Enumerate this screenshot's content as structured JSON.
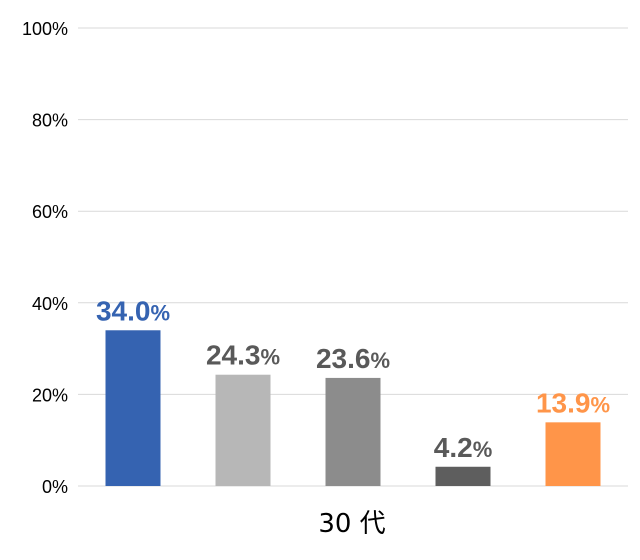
{
  "chart_data": {
    "type": "bar",
    "categories": [
      "30代"
    ],
    "category_label_display": "30 代",
    "ylim": [
      0,
      100
    ],
    "y_ticks": [
      "0%",
      "20%",
      "40%",
      "60%",
      "80%",
      "100%"
    ],
    "y_tick_values": [
      0,
      20,
      40,
      60,
      80,
      100
    ],
    "grid": true,
    "legend": "none",
    "series": [
      {
        "values": [
          34.0
        ],
        "label": "34.0",
        "unit": "%",
        "bar_color": "#3563b1",
        "label_color": "#3563b1"
      },
      {
        "values": [
          24.3
        ],
        "label": "24.3",
        "unit": "%",
        "bar_color": "#b7b7b7",
        "label_color": "#595959"
      },
      {
        "values": [
          23.6
        ],
        "label": "23.6",
        "unit": "%",
        "bar_color": "#8c8c8c",
        "label_color": "#595959"
      },
      {
        "values": [
          4.2
        ],
        "label": "4.2",
        "unit": "%",
        "bar_color": "#5e5e5e",
        "label_color": "#595959"
      },
      {
        "values": [
          13.9
        ],
        "label": "13.9",
        "unit": "%",
        "bar_color": "#ff9549",
        "label_color": "#ff9549"
      }
    ]
  }
}
